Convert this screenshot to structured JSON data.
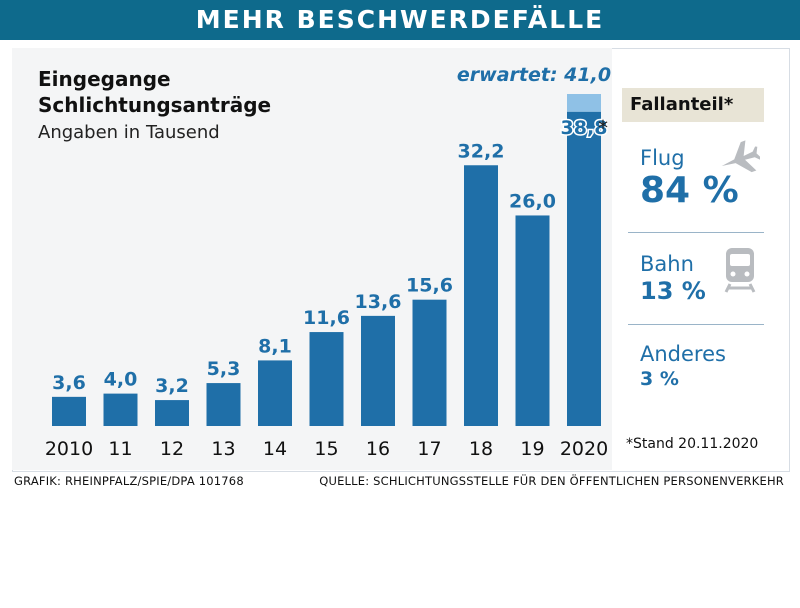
{
  "banner": "MEHR BESCHWERDEFÄLLE",
  "chart_title": "Eingegange Schlichtungsanträge",
  "chart_subtitle": "Angaben in Tausend",
  "expected_label": "erwartet: 41,0",
  "asterisk": "*",
  "stand_note": "*Stand 20.11.2020",
  "chart_data": {
    "type": "bar",
    "title": "Eingegange Schlichtungsanträge",
    "subtitle": "Angaben in Tausend",
    "categories": [
      "2010",
      "11",
      "12",
      "13",
      "14",
      "15",
      "16",
      "17",
      "18",
      "19",
      "2020"
    ],
    "values": [
      3.6,
      4.0,
      3.2,
      5.3,
      8.1,
      11.6,
      13.6,
      15.6,
      32.2,
      26.0,
      38.8
    ],
    "value_labels": [
      "3,6",
      "4,0",
      "3,2",
      "5,3",
      "8,1",
      "11,6",
      "13,6",
      "15,6",
      "32,2",
      "26,0",
      "38,8"
    ],
    "expected": {
      "category": "2020",
      "value": 41.0,
      "label": "erwartet: 41,0"
    },
    "ylim": [
      0,
      41.0
    ],
    "grid": false,
    "bar_color": "#1f6fa8",
    "expected_color": "#8fc1e6"
  },
  "share_panel": {
    "header": "Fallanteil*",
    "items": [
      {
        "label": "Flug",
        "value": "84 %",
        "icon": "plane-icon"
      },
      {
        "label": "Bahn",
        "value": "13 %",
        "icon": "train-icon"
      },
      {
        "label": "Anderes",
        "value": "3 %",
        "icon": ""
      }
    ]
  },
  "footer": {
    "left": "GRAFIK: RHEINPFALZ/SPIE/DPA 101768",
    "right": "QUELLE: SCHLICHTUNGSSTELLE FÜR DEN ÖFFENTLICHEN PERSONENVERKEHR"
  },
  "colors": {
    "banner": "#0e6a8c",
    "accent": "#1f6fa8",
    "header_bg": "#e8e4d6"
  }
}
